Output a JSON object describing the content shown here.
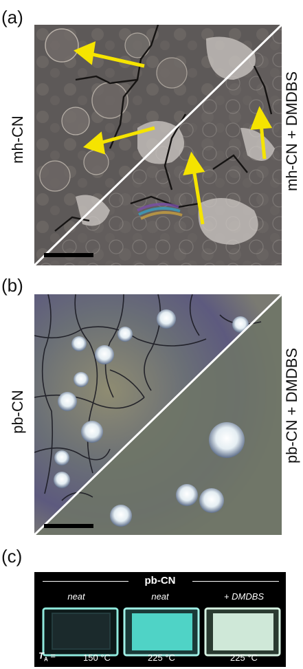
{
  "panels": {
    "a": {
      "letter": "(a)",
      "left_label": "mh-CN",
      "right_label": "mh-CN + DMDBS"
    },
    "b": {
      "letter": "(b)",
      "left_label": "pb-CN",
      "right_label": "pb-CN + DMDBS"
    },
    "c": {
      "letter": "(c)",
      "title": "pb-CN",
      "conditions": [
        "neat",
        "neat",
        "+ DMDBS"
      ],
      "ta_symbol": "T",
      "ta_sub": "A",
      "ta_eq": " = ",
      "temps": [
        "150 °C",
        "225 °C",
        "225 °C"
      ]
    }
  },
  "colors": {
    "arrow": "#f5e400",
    "sample_dark_glow": "#7fe6d8",
    "sample_bright": "#6fe0d6",
    "sample_dmdbs": "#d9eee2"
  },
  "image_a_description_icon": "microscopy-image",
  "image_b_description_icon": "microscopy-image"
}
